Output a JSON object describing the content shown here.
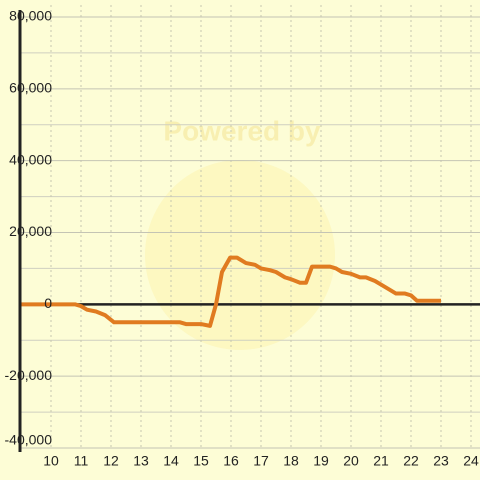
{
  "chart_data": {
    "type": "line",
    "watermark": "Powered by",
    "x": [
      9,
      10.8,
      11,
      11.2,
      11.5,
      11.8,
      12.1,
      12.3,
      13,
      14,
      14.3,
      14.5,
      15,
      15.3,
      15.5,
      15.7,
      15.97,
      16.2,
      16.5,
      16.8,
      17,
      17.3,
      17.5,
      17.8,
      18,
      18.3,
      18.5,
      18.7,
      19,
      19.3,
      19.5,
      19.7,
      20,
      20.3,
      20.5,
      20.8,
      21,
      21.3,
      21.5,
      21.8,
      22,
      22.2,
      22.5,
      23
    ],
    "series": [
      {
        "color": "#e07b20",
        "values": [
          0,
          0,
          -500,
          -1500,
          -2000,
          -3000,
          -5000,
          -5000,
          -5000,
          -5000,
          -5000,
          -5500,
          -5500,
          -6000,
          0,
          9000,
          13000,
          13000,
          11500,
          11000,
          10000,
          9500,
          9000,
          7500,
          7000,
          6000,
          6000,
          10500,
          10500,
          10500,
          10000,
          9000,
          8500,
          7500,
          7500,
          6500,
          5500,
          4000,
          3000,
          3000,
          2500,
          1000,
          1000,
          1000
        ]
      }
    ],
    "xlim": [
      9,
      24.3
    ],
    "xticks": [
      10,
      11,
      12,
      13,
      14,
      15,
      16,
      17,
      18,
      19,
      20,
      21,
      22,
      23,
      24
    ],
    "ylim": [
      -40000,
      80000
    ],
    "yticks": [
      {
        "value": 80000,
        "label": "80,000"
      },
      {
        "value": 60000,
        "label": "60,000"
      },
      {
        "value": 40000,
        "label": "40,000"
      },
      {
        "value": 20000,
        "label": "20,000"
      },
      0,
      {
        "value": -20000,
        "label": "-20,000"
      },
      {
        "value": -40000,
        "label": "-40,000"
      }
    ],
    "yminorticks": [
      70000,
      50000,
      30000,
      10000,
      -10000,
      -30000
    ],
    "grid": true
  }
}
